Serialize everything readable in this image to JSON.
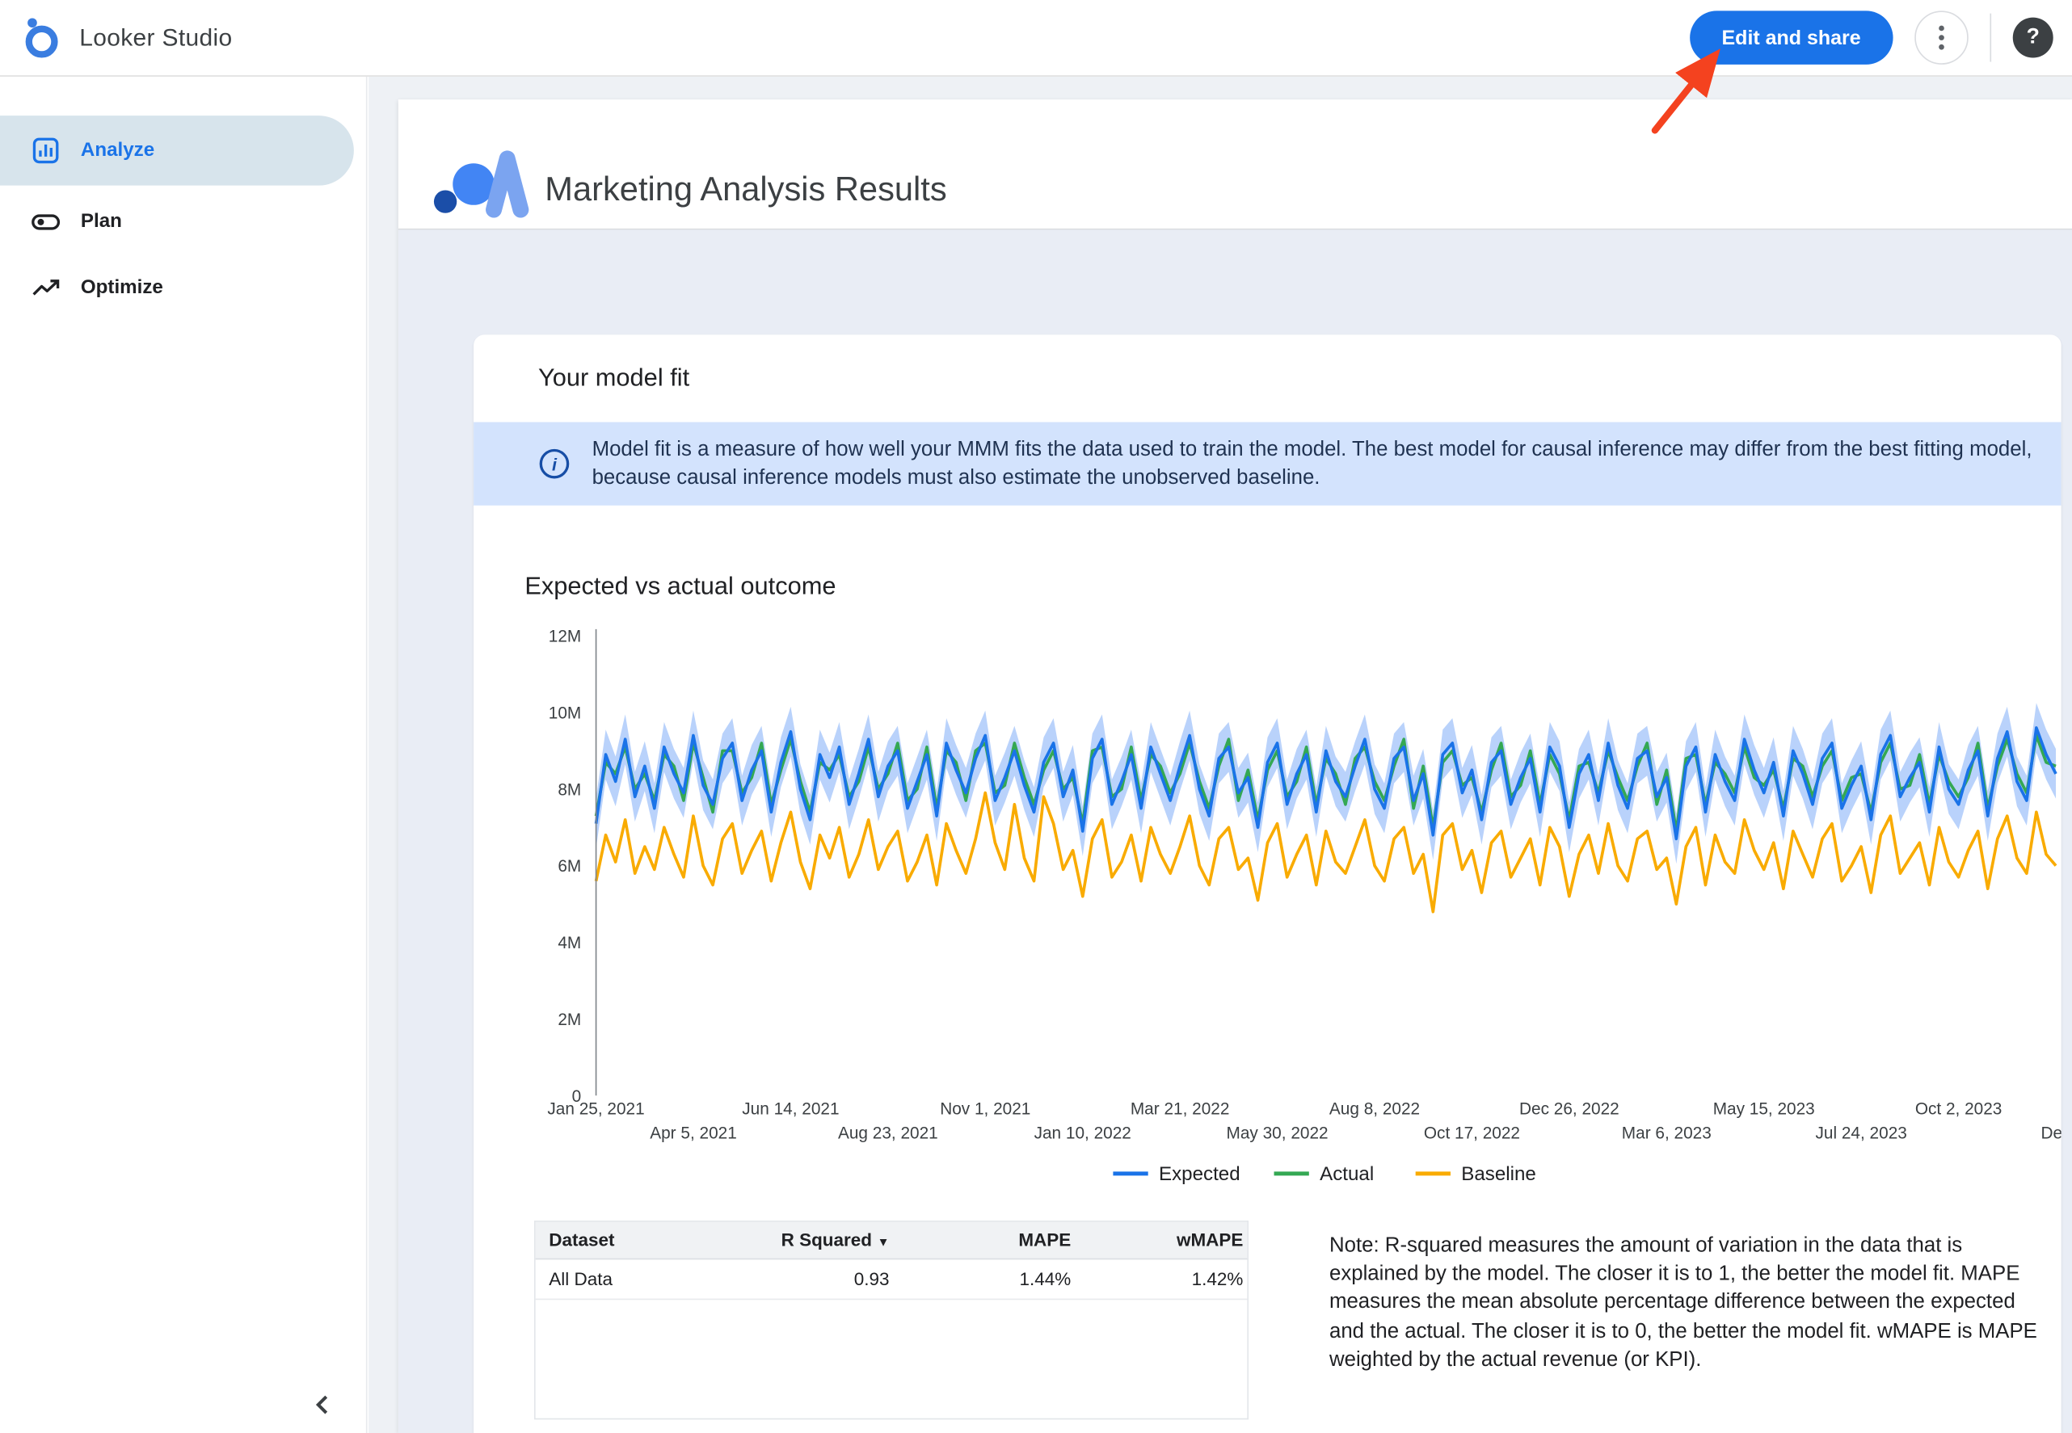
{
  "app": {
    "name": "Looker Studio"
  },
  "header": {
    "edit_and_share": "Edit and share",
    "help": "?"
  },
  "sidebar": {
    "items": [
      {
        "label": "Analyze",
        "active": true
      },
      {
        "label": "Plan",
        "active": false
      },
      {
        "label": "Optimize",
        "active": false
      }
    ]
  },
  "report": {
    "title": "Marketing Analysis Results",
    "section_title": "Your model fit",
    "info_icon": "i",
    "info_banner": "Model fit is a measure of how well your MMM fits the data used to train the model. The best model for causal inference may differ from the best fitting model, because causal inference models must also estimate the unobserved baseline.",
    "chart_heading": "Expected vs actual outcome",
    "note": "Note: R-squared measures the amount of variation in the data that is explained by the model. The closer it is to 1, the better the model fit. MAPE measures the mean absolute percentage difference between the expected and the actual. The closer it is to 0, the better the model fit. wMAPE is MAPE weighted by the actual revenue (or KPI)."
  },
  "model_fit_table": {
    "headers": [
      "Dataset",
      "R Squared",
      "MAPE",
      "wMAPE"
    ],
    "sort_icon": "▼",
    "sorted_by": "R Squared",
    "rows": [
      {
        "dataset": "All Data",
        "r_squared": "0.93",
        "mape": "1.44%",
        "wmape": "1.42%"
      }
    ]
  },
  "colors": {
    "accent_blue": "#1a73e8",
    "banner_bg": "#d3e3fd",
    "banner_text": "#1f3251",
    "sidebar_active_bg": "#d7e4ec",
    "sidebar_active_text": "#1a73e8",
    "expected": "#1a73e8",
    "actual": "#34a853",
    "baseline": "#f9ab00",
    "ci_band": "#a8c7fa",
    "annotation_arrow": "#f4421f"
  },
  "icons": {
    "looker_logo": "looker-knot",
    "analyze": "bar-chart",
    "plan": "toggle",
    "optimize": "trending-up",
    "more": "vertical-ellipsis",
    "help": "question-mark",
    "collapse": "chevron-left",
    "info": "info-circle",
    "sort": "triangle-down"
  },
  "chart_data": {
    "type": "line",
    "title": "Expected vs actual outcome",
    "unit": "M",
    "ylim_m": [
      0,
      12
    ],
    "y_ticks": [
      {
        "value": 12,
        "label": "12M"
      },
      {
        "value": 10,
        "label": "10M"
      },
      {
        "value": 8,
        "label": "8M"
      },
      {
        "value": 6,
        "label": "6M"
      },
      {
        "value": 4,
        "label": "4M"
      },
      {
        "value": 2,
        "label": "2M"
      },
      {
        "value": 0,
        "label": "0"
      }
    ],
    "x_ticks": [
      {
        "label": "Jan 25, 2021",
        "row": 1
      },
      {
        "label": "Apr 5, 2021",
        "row": 2
      },
      {
        "label": "Jun 14, 2021",
        "row": 1
      },
      {
        "label": "Aug 23, 2021",
        "row": 2
      },
      {
        "label": "Nov 1, 2021",
        "row": 1
      },
      {
        "label": "Jan 10, 2022",
        "row": 2
      },
      {
        "label": "Mar 21, 2022",
        "row": 1
      },
      {
        "label": "May 30, 2022",
        "row": 2
      },
      {
        "label": "Aug 8, 2022",
        "row": 1
      },
      {
        "label": "Oct 17, 2022",
        "row": 2
      },
      {
        "label": "Dec 26, 2022",
        "row": 1
      },
      {
        "label": "Mar 6, 2023",
        "row": 2
      },
      {
        "label": "May 15, 2023",
        "row": 1
      },
      {
        "label": "Jul 24, 2023",
        "row": 2
      },
      {
        "label": "Oct 2, 2023",
        "row": 1
      },
      {
        "label": "Dec",
        "row": 2
      }
    ],
    "legend_position": "bottom",
    "series": [
      {
        "name": "Expected",
        "color": "#1a73e8",
        "values_m": [
          7.1,
          8.9,
          8.2,
          9.3,
          7.8,
          8.6,
          7.5,
          9.1,
          8.4,
          7.9,
          9.4,
          8.1,
          7.6,
          8.8,
          9.2,
          7.7,
          8.5,
          9.0,
          7.4,
          8.7,
          9.5,
          8.0,
          7.2,
          8.9,
          8.3,
          9.1,
          7.6,
          8.4,
          9.3,
          7.8,
          8.6,
          9.0,
          7.5,
          8.2,
          8.9,
          7.3,
          9.2,
          8.5,
          7.9,
          8.8,
          9.4,
          7.7,
          8.3,
          9.0,
          8.1,
          7.4,
          8.7,
          9.2,
          7.8,
          8.5,
          6.9,
          8.8,
          9.3,
          7.6,
          8.2,
          8.9,
          7.5,
          9.1,
          8.4,
          7.7,
          8.6,
          9.4,
          8.0,
          7.3,
          8.8,
          9.1,
          7.9,
          8.3,
          7.0,
          8.7,
          9.2,
          7.6,
          8.4,
          8.9,
          7.4,
          9.0,
          8.2,
          7.8,
          8.6,
          9.3,
          8.0,
          7.5,
          8.8,
          9.1,
          7.7,
          8.4,
          6.8,
          8.9,
          9.2,
          7.9,
          8.5,
          7.2,
          8.7,
          9.0,
          7.6,
          8.3,
          8.8,
          7.4,
          9.1,
          8.6,
          7.0,
          8.4,
          8.9,
          7.7,
          9.2,
          8.1,
          7.5,
          8.8,
          9.0,
          7.8,
          8.3,
          6.7,
          8.6,
          9.1,
          7.4,
          8.9,
          8.2,
          7.7,
          9.3,
          8.5,
          7.9,
          8.7,
          7.3,
          9.0,
          8.4,
          7.6,
          8.8,
          9.2,
          7.5,
          8.1,
          8.6,
          7.2,
          8.9,
          9.4,
          7.8,
          8.3,
          8.7,
          7.4,
          9.1,
          8.0,
          7.6,
          8.5,
          9.0,
          7.3,
          8.8,
          9.5,
          8.2,
          7.7,
          9.6,
          8.9,
          8.4
        ]
      },
      {
        "name": "Actual",
        "color": "#34a853",
        "values_m": [
          7.3,
          8.7,
          8.4,
          9.1,
          8.0,
          8.4,
          7.7,
          8.9,
          8.6,
          7.7,
          9.2,
          8.3,
          7.4,
          9.0,
          9.0,
          7.9,
          8.3,
          9.2,
          7.6,
          8.5,
          9.3,
          8.2,
          7.4,
          8.7,
          8.5,
          8.9,
          7.8,
          8.2,
          9.1,
          8.0,
          8.4,
          9.2,
          7.7,
          8.0,
          9.1,
          7.5,
          9.0,
          8.7,
          7.7,
          9.0,
          9.2,
          7.9,
          8.1,
          9.2,
          8.3,
          7.6,
          8.5,
          9.0,
          8.0,
          8.3,
          7.1,
          9.0,
          9.1,
          7.8,
          8.0,
          9.1,
          7.7,
          8.9,
          8.6,
          7.9,
          8.4,
          9.2,
          8.2,
          7.5,
          8.6,
          9.3,
          7.7,
          8.5,
          7.2,
          8.5,
          9.0,
          7.8,
          8.2,
          9.1,
          7.6,
          8.8,
          8.4,
          7.6,
          8.8,
          9.1,
          8.2,
          7.7,
          8.6,
          9.3,
          7.5,
          8.6,
          7.0,
          8.7,
          9.0,
          8.1,
          8.3,
          7.4,
          8.5,
          9.2,
          7.8,
          8.1,
          9.0,
          7.6,
          8.9,
          8.4,
          7.2,
          8.6,
          8.7,
          7.9,
          9.0,
          8.3,
          7.7,
          8.6,
          9.2,
          7.6,
          8.5,
          6.9,
          8.8,
          8.9,
          7.6,
          8.7,
          8.4,
          7.9,
          9.1,
          8.3,
          8.1,
          8.5,
          7.5,
          8.8,
          8.6,
          7.8,
          8.6,
          9.0,
          7.7,
          8.3,
          8.4,
          7.4,
          8.7,
          9.2,
          8.0,
          8.1,
          8.9,
          7.6,
          8.9,
          8.2,
          7.8,
          8.3,
          9.2,
          7.5,
          8.6,
          9.3,
          8.4,
          7.9,
          9.4,
          8.7,
          8.6
        ]
      },
      {
        "name": "Baseline",
        "color": "#f9ab00",
        "values_m": [
          5.6,
          6.8,
          6.1,
          7.2,
          5.8,
          6.5,
          5.9,
          7.0,
          6.3,
          5.7,
          7.3,
          6.0,
          5.5,
          6.7,
          7.1,
          5.8,
          6.4,
          6.9,
          5.6,
          6.6,
          7.4,
          6.1,
          5.4,
          6.8,
          6.2,
          7.0,
          5.7,
          6.3,
          7.2,
          5.9,
          6.5,
          6.9,
          5.6,
          6.1,
          6.8,
          5.5,
          7.1,
          6.4,
          5.8,
          6.7,
          7.9,
          6.6,
          5.9,
          7.6,
          6.2,
          5.6,
          7.8,
          7.1,
          5.9,
          6.4,
          5.2,
          6.7,
          7.2,
          5.7,
          6.1,
          6.8,
          5.6,
          7.0,
          6.3,
          5.8,
          6.5,
          7.3,
          6.0,
          5.5,
          6.7,
          7.0,
          5.9,
          6.2,
          5.1,
          6.6,
          7.1,
          5.7,
          6.3,
          6.8,
          5.5,
          6.9,
          6.1,
          5.8,
          6.5,
          7.2,
          6.0,
          5.6,
          6.7,
          7.0,
          5.8,
          6.3,
          4.8,
          6.8,
          7.1,
          5.9,
          6.4,
          5.3,
          6.6,
          6.9,
          5.7,
          6.2,
          6.7,
          5.5,
          7.0,
          6.5,
          5.2,
          6.3,
          6.8,
          5.8,
          7.1,
          6.0,
          5.6,
          6.7,
          6.9,
          5.9,
          6.2,
          5.0,
          6.5,
          7.0,
          5.5,
          6.8,
          6.1,
          5.8,
          7.2,
          6.4,
          5.9,
          6.6,
          5.4,
          6.9,
          6.3,
          5.7,
          6.7,
          7.1,
          5.6,
          6.0,
          6.5,
          5.3,
          6.8,
          7.3,
          5.8,
          6.2,
          6.6,
          5.5,
          7.0,
          6.1,
          5.7,
          6.4,
          6.9,
          5.4,
          6.7,
          7.3,
          6.2,
          5.8,
          7.4,
          6.3,
          6.0
        ]
      }
    ],
    "ci_band": {
      "around": "Expected",
      "halfwidth_m": 0.65,
      "color": "#a8c7fa",
      "opacity": 0.8
    }
  }
}
